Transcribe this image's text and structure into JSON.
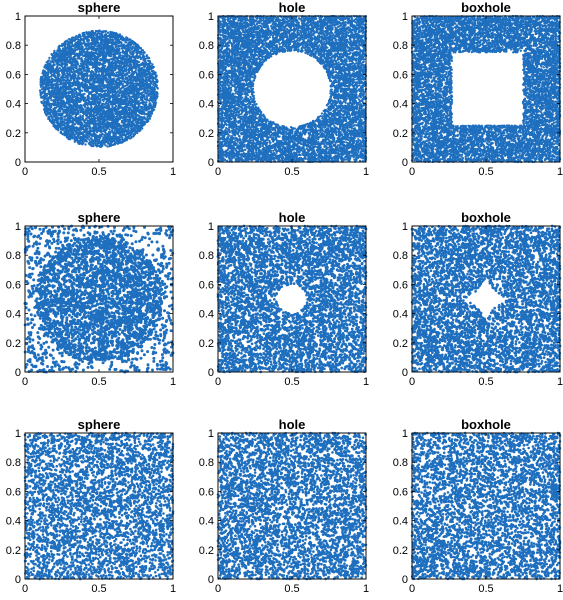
{
  "chart_data": [
    {
      "type": "scatter",
      "title": "sphere",
      "xlim": [
        0,
        1
      ],
      "ylim": [
        0,
        1
      ],
      "xticks": [
        "0",
        "0.5",
        "1"
      ],
      "yticks": [
        "0",
        "0.2",
        "0.4",
        "0.6",
        "0.8",
        "1"
      ],
      "color": "#1f6fbf",
      "grid": false,
      "pattern": "disk of points centered at (0.5, 0.5), radius 0.4, densely filled",
      "points_approx": 6000
    },
    {
      "type": "scatter",
      "title": "hole",
      "xlim": [
        0,
        1
      ],
      "ylim": [
        0,
        1
      ],
      "xticks": [
        "0",
        "0.5",
        "1"
      ],
      "yticks": [
        "0",
        "0.2",
        "0.4",
        "0.6",
        "0.8",
        "1"
      ],
      "color": "#1f6fbf",
      "grid": false,
      "pattern": "unit square densely filled, empty disk centered at (0.5, 0.5) radius 0.26",
      "points_approx": 9000
    },
    {
      "type": "scatter",
      "title": "boxhole",
      "xlim": [
        0,
        1
      ],
      "ylim": [
        0,
        1
      ],
      "xticks": [
        "0",
        "0.5",
        "1"
      ],
      "yticks": [
        "0",
        "0.2",
        "0.4",
        "0.6",
        "0.8",
        "1"
      ],
      "color": "#1f6fbf",
      "grid": false,
      "pattern": "unit square densely filled, empty box x 0.27-0.75, y 0.25-0.75",
      "points_approx": 9000
    },
    {
      "type": "scatter",
      "title": "sphere",
      "xlim": [
        0,
        1
      ],
      "ylim": [
        0,
        1
      ],
      "xticks": [
        "0",
        "0.5",
        "1"
      ],
      "yticks": [
        "0",
        "0.2",
        "0.4",
        "0.6",
        "0.8",
        "1"
      ],
      "color": "#1f6fbf",
      "grid": false,
      "pattern": "points spread over unit square, denser near the disk boundary, sparse corners",
      "points_approx": 3500
    },
    {
      "type": "scatter",
      "title": "hole",
      "xlim": [
        0,
        1
      ],
      "ylim": [
        0,
        1
      ],
      "xticks": [
        "0",
        "0.5",
        "1"
      ],
      "yticks": [
        "0",
        "0.2",
        "0.4",
        "0.6",
        "0.8",
        "1"
      ],
      "color": "#1f6fbf",
      "grid": false,
      "pattern": "unit square filled, small empty disk centered at (0.5, 0.5) radius 0.1",
      "points_approx": 5000
    },
    {
      "type": "scatter",
      "title": "boxhole",
      "xlim": [
        0,
        1
      ],
      "ylim": [
        0,
        1
      ],
      "xticks": [
        "0",
        "0.5",
        "1"
      ],
      "yticks": [
        "0",
        "0.2",
        "0.4",
        "0.6",
        "0.8",
        "1"
      ],
      "color": "#1f6fbf",
      "grid": false,
      "pattern": "unit square filled, empty four-pointed star (astroid) at center, half-extent 0.17",
      "points_approx": 5000
    },
    {
      "type": "scatter",
      "title": "sphere",
      "xlim": [
        0,
        1
      ],
      "ylim": [
        0,
        1
      ],
      "xticks": [
        "0",
        "0.5",
        "1"
      ],
      "yticks": [
        "0",
        "0.2",
        "0.4",
        "0.6",
        "0.8",
        "1"
      ],
      "color": "#1f6fbf",
      "grid": false,
      "pattern": "points spread nearly uniformly over unit square",
      "points_approx": 4000
    },
    {
      "type": "scatter",
      "title": "hole",
      "xlim": [
        0,
        1
      ],
      "ylim": [
        0,
        1
      ],
      "xticks": [
        "0",
        "0.5",
        "1"
      ],
      "yticks": [
        "0",
        "0.2",
        "0.4",
        "0.6",
        "0.8",
        "1"
      ],
      "color": "#1f6fbf",
      "grid": false,
      "pattern": "points spread nearly uniformly over unit square, slight thinning near center",
      "points_approx": 4500
    },
    {
      "type": "scatter",
      "title": "boxhole",
      "xlim": [
        0,
        1
      ],
      "ylim": [
        0,
        1
      ],
      "xticks": [
        "0",
        "0.5",
        "1"
      ],
      "yticks": [
        "0",
        "0.2",
        "0.4",
        "0.6",
        "0.8",
        "1"
      ],
      "color": "#1f6fbf",
      "grid": false,
      "pattern": "points spread nearly uniformly, tiny x-shaped gap at (0.5, 0.5)",
      "points_approx": 4500
    }
  ]
}
